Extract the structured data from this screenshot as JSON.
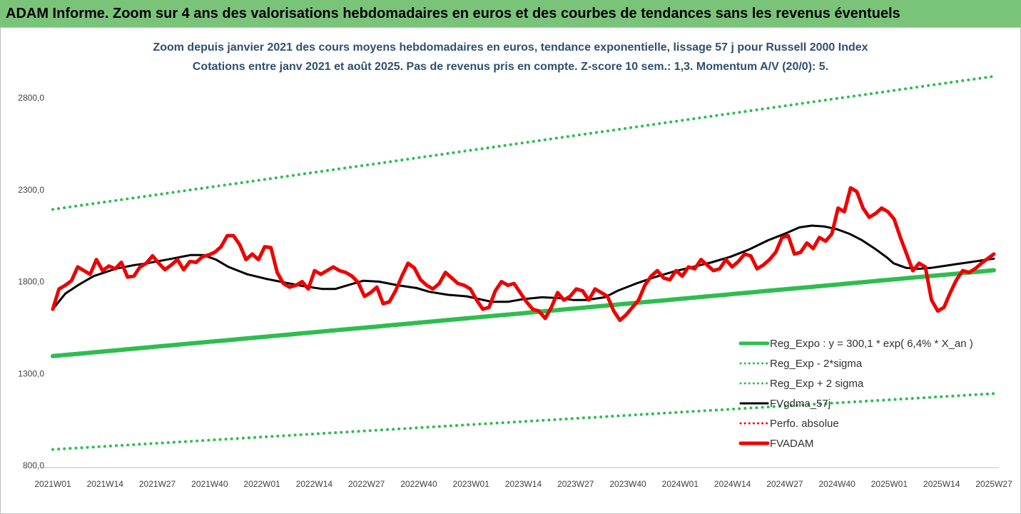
{
  "banner": {
    "title": "ADAM Informe. Zoom sur 4 ans des valorisations hebdomadaires en euros et des courbes de tendances sans les revenus éventuels"
  },
  "chart_data": {
    "type": "line",
    "title": "Zoom depuis janvier 2021 des cours moyens hebdomadaires en euros, tendance exponentielle, lissage 57 j pour Russell 2000 Index",
    "subtitle": "Cotations entre janv 2021 et août 2025.  Pas de revenus pris en compte. Z-score 10 sem.: 1,3. Momentum A/V (20/0): 5.",
    "ylim": [
      800,
      3000
    ],
    "yticks": [
      800,
      1300,
      1800,
      2300,
      2800
    ],
    "ytick_labels": [
      "800,0",
      "1300,0",
      "1800,0",
      "2300,0",
      "2800,0"
    ],
    "x_tick_labels": [
      "2021W01",
      "2021W14",
      "2021W27",
      "2021W40",
      "2022W01",
      "2022W14",
      "2022W27",
      "2022W40",
      "2023W01",
      "2023W14",
      "2023W27",
      "2023W40",
      "2024W01",
      "2024W14",
      "2024W27",
      "2024W40",
      "2025W01",
      "2025W14",
      "2025W27"
    ],
    "n_weeks": 235,
    "grid": false,
    "legend_position": "bottom-right",
    "series": [
      {
        "name": "Reg_Expo : y = 300,1 * exp( 6,4% *  X_an )",
        "color": "#2ebd4f",
        "style": "solid",
        "width": 6,
        "linear": [
          [
            0,
            1395
          ],
          [
            234,
            1862
          ]
        ]
      },
      {
        "name": "Reg_Exp - 2*sigma",
        "color": "#2ebd4f",
        "style": "dotted",
        "width": 4,
        "linear": [
          [
            0,
            887
          ],
          [
            234,
            1191
          ]
        ]
      },
      {
        "name": "Reg_Exp + 2 sigma",
        "color": "#2ebd4f",
        "style": "dotted",
        "width": 4,
        "linear": [
          [
            0,
            2193
          ],
          [
            234,
            2917
          ]
        ]
      },
      {
        "name": "FVgdma_57j",
        "color": "#000000",
        "style": "solid",
        "width": 3,
        "points": [
          [
            0,
            1650
          ],
          [
            4,
            1735
          ],
          [
            8,
            1780
          ],
          [
            13,
            1830
          ],
          [
            20,
            1870
          ],
          [
            26,
            1890
          ],
          [
            30,
            1900
          ],
          [
            38,
            1925
          ],
          [
            44,
            1945
          ],
          [
            48,
            1945
          ],
          [
            52,
            1920
          ],
          [
            56,
            1880
          ],
          [
            62,
            1840
          ],
          [
            68,
            1815
          ],
          [
            74,
            1795
          ],
          [
            80,
            1775
          ],
          [
            86,
            1760
          ],
          [
            90,
            1760
          ],
          [
            94,
            1780
          ],
          [
            99,
            1805
          ],
          [
            104,
            1800
          ],
          [
            110,
            1780
          ],
          [
            116,
            1765
          ],
          [
            120,
            1745
          ],
          [
            126,
            1728
          ],
          [
            132,
            1720
          ],
          [
            136,
            1705
          ],
          [
            140,
            1690
          ],
          [
            145,
            1690
          ],
          [
            150,
            1705
          ],
          [
            156,
            1715
          ],
          [
            162,
            1710
          ],
          [
            166,
            1700
          ],
          [
            170,
            1700
          ],
          [
            176,
            1715
          ],
          [
            180,
            1750
          ],
          [
            186,
            1790
          ],
          [
            192,
            1825
          ],
          [
            198,
            1855
          ],
          [
            204,
            1880
          ],
          [
            210,
            1905
          ],
          [
            216,
            1935
          ],
          [
            222,
            1975
          ],
          [
            228,
            2025
          ],
          [
            234,
            2065
          ],
          [
            238,
            2095
          ],
          [
            242,
            2105
          ],
          [
            246,
            2100
          ],
          [
            250,
            2085
          ],
          [
            254,
            2060
          ],
          [
            258,
            2025
          ],
          [
            262,
            1980
          ],
          [
            266,
            1930
          ],
          [
            268,
            1900
          ],
          [
            272,
            1875
          ],
          [
            276,
            1870
          ],
          [
            280,
            1875
          ],
          [
            284,
            1885
          ],
          [
            288,
            1895
          ],
          [
            292,
            1905
          ],
          [
            296,
            1915
          ],
          [
            300,
            1925
          ]
        ]
      },
      {
        "name": "Perfo. absolue",
        "color": "#ff0000",
        "style": "dotted",
        "width": 3,
        "points": []
      },
      {
        "name": "FVADAM",
        "color": "#ee0000",
        "style": "solid",
        "width": 5,
        "points": [
          [
            0,
            1650
          ],
          [
            2,
            1760
          ],
          [
            4,
            1780
          ],
          [
            6,
            1805
          ],
          [
            8,
            1880
          ],
          [
            10,
            1860
          ],
          [
            12,
            1840
          ],
          [
            14,
            1920
          ],
          [
            16,
            1860
          ],
          [
            18,
            1885
          ],
          [
            20,
            1870
          ],
          [
            22,
            1905
          ],
          [
            24,
            1825
          ],
          [
            26,
            1830
          ],
          [
            28,
            1880
          ],
          [
            30,
            1900
          ],
          [
            32,
            1940
          ],
          [
            34,
            1900
          ],
          [
            36,
            1865
          ],
          [
            38,
            1890
          ],
          [
            40,
            1920
          ],
          [
            42,
            1865
          ],
          [
            44,
            1910
          ],
          [
            46,
            1905
          ],
          [
            48,
            1935
          ],
          [
            50,
            1945
          ],
          [
            52,
            1960
          ],
          [
            54,
            1990
          ],
          [
            56,
            2050
          ],
          [
            58,
            2050
          ],
          [
            60,
            2000
          ],
          [
            62,
            1920
          ],
          [
            64,
            1950
          ],
          [
            66,
            1920
          ],
          [
            68,
            1990
          ],
          [
            70,
            1985
          ],
          [
            72,
            1850
          ],
          [
            74,
            1790
          ],
          [
            76,
            1770
          ],
          [
            78,
            1780
          ],
          [
            80,
            1800
          ],
          [
            82,
            1760
          ],
          [
            84,
            1860
          ],
          [
            86,
            1840
          ],
          [
            88,
            1860
          ],
          [
            90,
            1880
          ],
          [
            92,
            1860
          ],
          [
            94,
            1850
          ],
          [
            96,
            1830
          ],
          [
            98,
            1795
          ],
          [
            100,
            1720
          ],
          [
            102,
            1740
          ],
          [
            104,
            1770
          ],
          [
            106,
            1680
          ],
          [
            108,
            1690
          ],
          [
            110,
            1750
          ],
          [
            112,
            1830
          ],
          [
            114,
            1900
          ],
          [
            116,
            1875
          ],
          [
            118,
            1810
          ],
          [
            120,
            1780
          ],
          [
            122,
            1760
          ],
          [
            124,
            1790
          ],
          [
            126,
            1850
          ],
          [
            128,
            1820
          ],
          [
            130,
            1790
          ],
          [
            132,
            1780
          ],
          [
            134,
            1760
          ],
          [
            136,
            1700
          ],
          [
            138,
            1650
          ],
          [
            140,
            1660
          ],
          [
            142,
            1750
          ],
          [
            144,
            1800
          ],
          [
            146,
            1780
          ],
          [
            148,
            1790
          ],
          [
            150,
            1740
          ],
          [
            152,
            1690
          ],
          [
            154,
            1650
          ],
          [
            156,
            1640
          ],
          [
            158,
            1600
          ],
          [
            160,
            1660
          ],
          [
            162,
            1740
          ],
          [
            164,
            1700
          ],
          [
            166,
            1720
          ],
          [
            168,
            1760
          ],
          [
            170,
            1750
          ],
          [
            172,
            1700
          ],
          [
            174,
            1760
          ],
          [
            176,
            1740
          ],
          [
            178,
            1720
          ],
          [
            180,
            1640
          ],
          [
            182,
            1590
          ],
          [
            184,
            1620
          ],
          [
            186,
            1660
          ],
          [
            188,
            1700
          ],
          [
            190,
            1780
          ],
          [
            192,
            1830
          ],
          [
            194,
            1860
          ],
          [
            196,
            1820
          ],
          [
            198,
            1810
          ],
          [
            200,
            1860
          ],
          [
            202,
            1830
          ],
          [
            204,
            1880
          ],
          [
            206,
            1870
          ],
          [
            208,
            1920
          ],
          [
            210,
            1890
          ],
          [
            212,
            1860
          ],
          [
            214,
            1870
          ],
          [
            216,
            1920
          ],
          [
            218,
            1880
          ],
          [
            220,
            1910
          ],
          [
            222,
            1950
          ],
          [
            224,
            1940
          ],
          [
            226,
            1870
          ],
          [
            228,
            1890
          ],
          [
            230,
            1920
          ],
          [
            232,
            1960
          ],
          [
            234,
            2040
          ],
          [
            236,
            2050
          ],
          [
            238,
            1950
          ],
          [
            240,
            1960
          ],
          [
            242,
            2010
          ],
          [
            244,
            1980
          ],
          [
            246,
            2040
          ],
          [
            248,
            2020
          ],
          [
            250,
            2060
          ],
          [
            252,
            2200
          ],
          [
            254,
            2180
          ],
          [
            256,
            2310
          ],
          [
            258,
            2290
          ],
          [
            260,
            2200
          ],
          [
            262,
            2150
          ],
          [
            264,
            2170
          ],
          [
            266,
            2200
          ],
          [
            268,
            2180
          ],
          [
            270,
            2140
          ],
          [
            272,
            2040
          ],
          [
            274,
            1950
          ],
          [
            276,
            1860
          ],
          [
            278,
            1900
          ],
          [
            280,
            1880
          ],
          [
            282,
            1700
          ],
          [
            284,
            1640
          ],
          [
            286,
            1660
          ],
          [
            288,
            1740
          ],
          [
            290,
            1810
          ],
          [
            292,
            1860
          ],
          [
            294,
            1850
          ],
          [
            296,
            1870
          ],
          [
            298,
            1900
          ],
          [
            300,
            1925
          ],
          [
            302,
            1950
          ]
        ]
      }
    ]
  }
}
